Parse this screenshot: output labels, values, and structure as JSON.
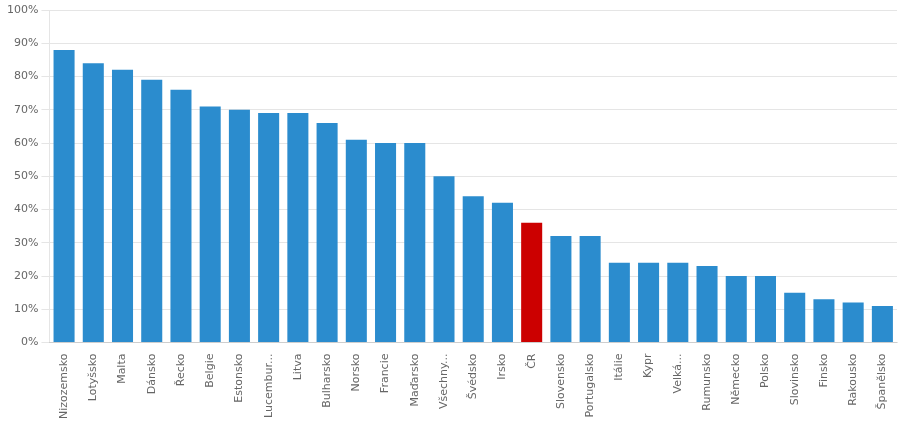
{
  "chart_data": {
    "type": "bar",
    "categories": [
      "Nizozemsko",
      "Lotyšsko",
      "Malta",
      "Dánsko",
      "Řecko",
      "Belgie",
      "Estonsko",
      "Lucembur...",
      "Litva",
      "Bulharsko",
      "Norsko",
      "Francie",
      "Maďarsko",
      "Všechny...",
      "Švédsko",
      "Irsko",
      "ČR",
      "Slovensko",
      "Portugalsko",
      "Itálie",
      "Kypr",
      "Velká...",
      "Rumunsko",
      "Německo",
      "Polsko",
      "Slovinsko",
      "Finsko",
      "Rakousko",
      "Španělsko"
    ],
    "values": [
      88,
      84,
      82,
      79,
      76,
      71,
      70,
      69,
      69,
      66,
      61,
      60,
      60,
      50,
      44,
      42,
      36,
      32,
      32,
      24,
      24,
      24,
      23,
      20,
      20,
      15,
      13,
      12,
      11
    ],
    "colors": [
      "#2B8CCE",
      "#2B8CCE",
      "#2B8CCE",
      "#2B8CCE",
      "#2B8CCE",
      "#2B8CCE",
      "#2B8CCE",
      "#2B8CCE",
      "#2B8CCE",
      "#2B8CCE",
      "#2B8CCE",
      "#2B8CCE",
      "#2B8CCE",
      "#2B8CCE",
      "#2B8CCE",
      "#2B8CCE",
      "#CC0000",
      "#2B8CCE",
      "#2B8CCE",
      "#2B8CCE",
      "#2B8CCE",
      "#2B8CCE",
      "#2B8CCE",
      "#2B8CCE",
      "#2B8CCE",
      "#2B8CCE",
      "#2B8CCE",
      "#2B8CCE",
      "#2B8CCE"
    ],
    "ylim": [
      0,
      100
    ],
    "yticks": [
      {
        "value": 0,
        "label": "0%"
      },
      {
        "value": 10,
        "label": "10%"
      },
      {
        "value": 20,
        "label": "20%"
      },
      {
        "value": 30,
        "label": "30%"
      },
      {
        "value": 40,
        "label": "40%"
      },
      {
        "value": 50,
        "label": "50%"
      },
      {
        "value": 60,
        "label": "60%"
      },
      {
        "value": 70,
        "label": "70%"
      },
      {
        "value": 80,
        "label": "80%"
      },
      {
        "value": 90,
        "label": "90%"
      },
      {
        "value": 100,
        "label": "100%"
      }
    ],
    "grid": true
  }
}
